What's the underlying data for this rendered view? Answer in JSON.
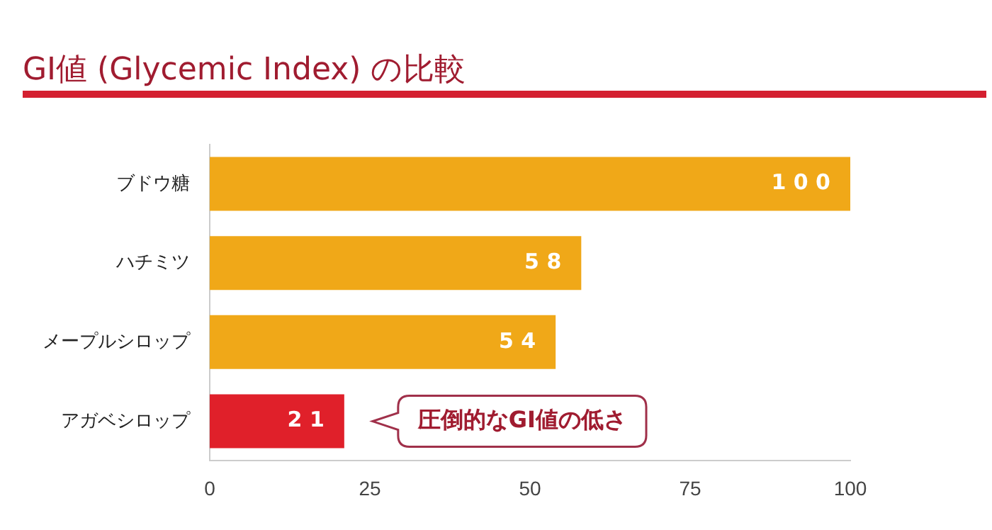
{
  "chart_data": {
    "type": "bar",
    "orientation": "horizontal",
    "title": "GI値 (Glycemic Index) の比較",
    "categories": [
      "ブドウ糖",
      "ハチミツ",
      "メープルシロップ",
      "アガベシロップ"
    ],
    "values": [
      100,
      58,
      54,
      21
    ],
    "colors": [
      "#f0a818",
      "#f0a818",
      "#f0a818",
      "#e0202a"
    ],
    "xlim": [
      0,
      100
    ],
    "xticks": [
      0,
      25,
      50,
      75,
      100
    ],
    "grid": false,
    "legend": false,
    "data_labels": true,
    "annotations": [
      "圧倒的なGI値の低さ"
    ]
  }
}
